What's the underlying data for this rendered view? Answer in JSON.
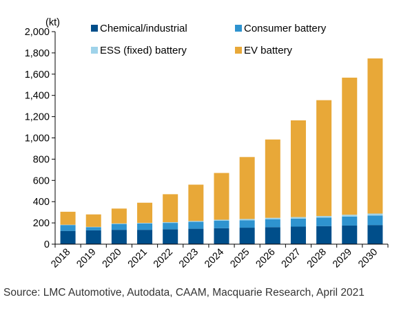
{
  "chart_data": {
    "type": "bar",
    "stacked": true,
    "y_unit_label": "(kt)",
    "ylim": [
      0,
      2000
    ],
    "y_ticks": [
      0,
      200,
      400,
      600,
      800,
      1000,
      1200,
      1400,
      1600,
      1800,
      2000
    ],
    "y_tick_labels": [
      "0",
      "200",
      "400",
      "600",
      "800",
      "1,000",
      "1,200",
      "1,400",
      "1,600",
      "1,800",
      "2,000"
    ],
    "grid": false,
    "legend_placement": "top",
    "categories": [
      "2018",
      "2019",
      "2020",
      "2021",
      "2022",
      "2023",
      "2024",
      "2025",
      "2026",
      "2027",
      "2028",
      "2029",
      "2030"
    ],
    "series": [
      {
        "name": "Chemical/industrial",
        "color": "#004e8a",
        "values": [
          125,
          130,
          135,
          135,
          140,
          145,
          150,
          155,
          160,
          165,
          170,
          175,
          180
        ]
      },
      {
        "name": "Consumer battery",
        "color": "#2e93cf",
        "values": [
          55,
          30,
          55,
          60,
          60,
          65,
          70,
          70,
          75,
          75,
          80,
          85,
          90
        ]
      },
      {
        "name": "ESS (fixed) battery",
        "color": "#9fd3ea",
        "values": [
          3,
          3,
          5,
          5,
          7,
          8,
          10,
          12,
          13,
          15,
          15,
          17,
          18
        ]
      },
      {
        "name": "EV battery",
        "color": "#e8a838",
        "values": [
          122,
          117,
          140,
          190,
          263,
          342,
          440,
          583,
          737,
          910,
          1090,
          1290,
          1460
        ]
      }
    ]
  },
  "source": "Source: LMC Automotive, Autodata, CAAM, Macquarie Research, April 2021"
}
